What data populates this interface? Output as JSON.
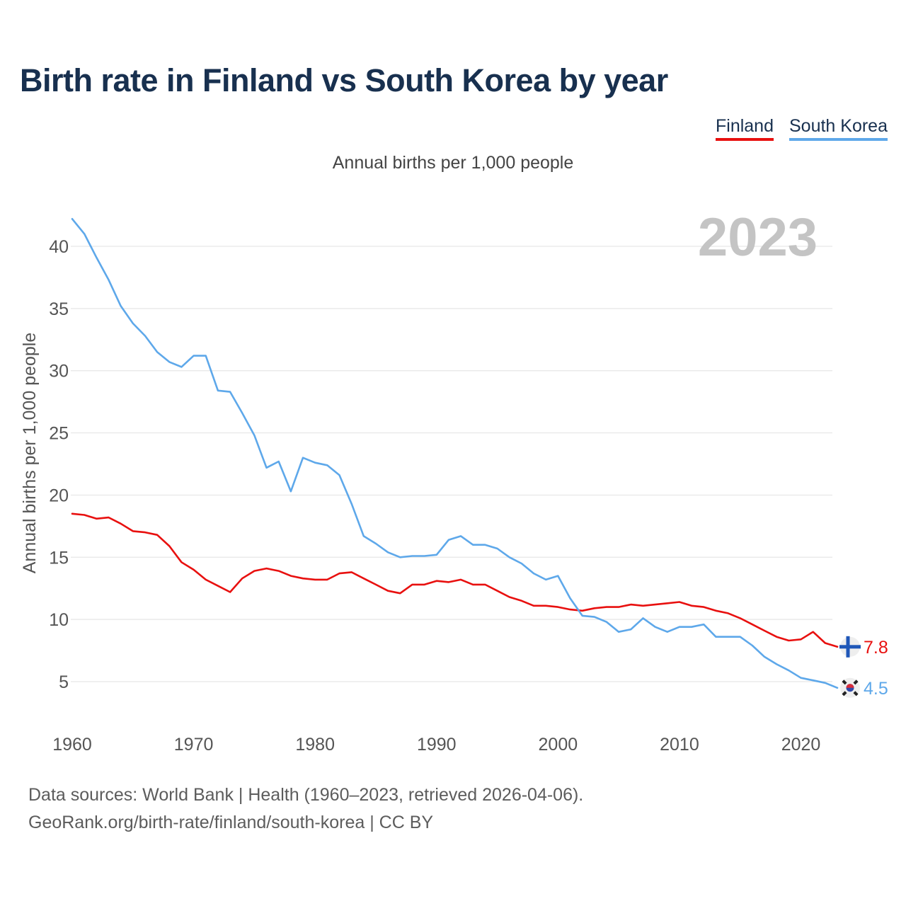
{
  "title": "Birth rate in Finland vs South Korea by year",
  "subtitle": "Annual births per 1,000 people",
  "legend": [
    {
      "label": "Finland",
      "color": "#e8100f"
    },
    {
      "label": "South Korea",
      "color": "#5ea8ea"
    }
  ],
  "year_label": "2023",
  "source": {
    "line1": "Data sources: World Bank | Health (1960–2023, retrieved 2026-04-06).",
    "line2": "GeoRank.org/birth-rate/finland/south-korea | CC BY"
  },
  "chart_data": {
    "type": "line",
    "title": "Birth rate in Finland vs South Korea by year",
    "xlabel": "",
    "ylabel": "Annual births per 1,000 people",
    "xlim": [
      1960,
      2023
    ],
    "ylim": [
      0,
      43
    ],
    "x_ticks": [
      1960,
      1970,
      1980,
      1990,
      2000,
      2010,
      2020
    ],
    "y_ticks": [
      5,
      10,
      15,
      20,
      25,
      30,
      35,
      40
    ],
    "grid": true,
    "legend_position": "top-right",
    "x": [
      1960,
      1961,
      1962,
      1963,
      1964,
      1965,
      1966,
      1967,
      1968,
      1969,
      1970,
      1971,
      1972,
      1973,
      1974,
      1975,
      1976,
      1977,
      1978,
      1979,
      1980,
      1981,
      1982,
      1983,
      1984,
      1985,
      1986,
      1987,
      1988,
      1989,
      1990,
      1991,
      1992,
      1993,
      1994,
      1995,
      1996,
      1997,
      1998,
      1999,
      2000,
      2001,
      2002,
      2003,
      2004,
      2005,
      2006,
      2007,
      2008,
      2009,
      2010,
      2011,
      2012,
      2013,
      2014,
      2015,
      2016,
      2017,
      2018,
      2019,
      2020,
      2021,
      2022,
      2023
    ],
    "series": [
      {
        "name": "Finland",
        "color": "#e8100f",
        "end_label": "7.8",
        "values": [
          18.5,
          18.4,
          18.1,
          18.2,
          17.7,
          17.1,
          17.0,
          16.8,
          15.9,
          14.6,
          14.0,
          13.2,
          12.7,
          12.2,
          13.3,
          13.9,
          14.1,
          13.9,
          13.5,
          13.3,
          13.2,
          13.2,
          13.7,
          13.8,
          13.3,
          12.8,
          12.3,
          12.1,
          12.8,
          12.8,
          13.1,
          13.0,
          13.2,
          12.8,
          12.8,
          12.3,
          11.8,
          11.5,
          11.1,
          11.1,
          11.0,
          10.8,
          10.7,
          10.9,
          11.0,
          11.0,
          11.2,
          11.1,
          11.2,
          11.3,
          11.4,
          11.1,
          11.0,
          10.7,
          10.5,
          10.1,
          9.6,
          9.1,
          8.6,
          8.3,
          8.4,
          9.0,
          8.1,
          7.8
        ]
      },
      {
        "name": "South Korea",
        "color": "#5ea8ea",
        "end_label": "4.5",
        "values": [
          42.2,
          41.0,
          39.1,
          37.3,
          35.2,
          33.8,
          32.8,
          31.5,
          30.7,
          30.3,
          31.2,
          31.2,
          28.4,
          28.3,
          26.6,
          24.8,
          22.2,
          22.7,
          20.3,
          23.0,
          22.6,
          22.4,
          21.6,
          19.3,
          16.7,
          16.1,
          15.4,
          15.0,
          15.1,
          15.1,
          15.2,
          16.4,
          16.7,
          16.0,
          16.0,
          15.7,
          15.0,
          14.5,
          13.7,
          13.2,
          13.5,
          11.7,
          10.3,
          10.2,
          9.8,
          9.0,
          9.2,
          10.1,
          9.4,
          9.0,
          9.4,
          9.4,
          9.6,
          8.6,
          8.6,
          8.6,
          7.9,
          7.0,
          6.4,
          5.9,
          5.3,
          5.1,
          4.9,
          4.5
        ]
      }
    ]
  }
}
